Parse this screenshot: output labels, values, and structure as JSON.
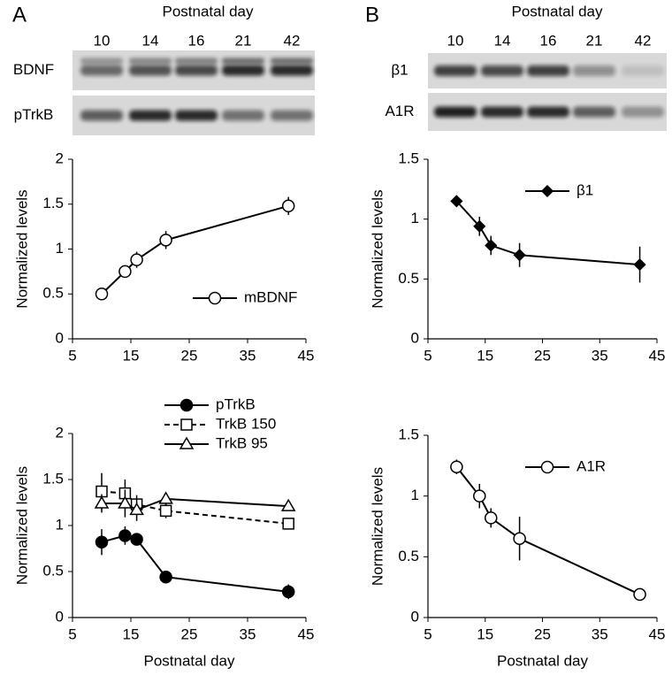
{
  "panels": [
    {
      "label": "A",
      "title": "Postnatal day",
      "lanes": [
        10,
        14,
        16,
        21,
        42
      ],
      "rows": [
        "BDNF",
        "pTrkB"
      ]
    },
    {
      "label": "B",
      "title": "Postnatal day",
      "lanes": [
        10,
        14,
        16,
        21,
        42
      ],
      "rows": [
        "β1",
        "A1R"
      ]
    }
  ],
  "chart_data": [
    {
      "type": "line",
      "y_label": "Normalized levels",
      "x": [
        10,
        14,
        16,
        21,
        42
      ],
      "xlim": [
        5,
        45
      ],
      "xticks": [
        5,
        15,
        25,
        35,
        45
      ],
      "ylim": [
        0,
        2
      ],
      "yticks": [
        0,
        0.5,
        1,
        1.5,
        2
      ],
      "legend": "center right",
      "series": [
        {
          "name": "mBDNF",
          "color": "#000000",
          "marker": "circle",
          "fill": "#ffffff",
          "dashed": false,
          "values": [
            0.5,
            0.75,
            0.88,
            1.1,
            1.48
          ],
          "errors": [
            0.03,
            0.06,
            0.09,
            0.1,
            0.1
          ]
        }
      ]
    },
    {
      "type": "line",
      "y_label": "Normalized levels",
      "x_label": "Postnatal day",
      "x": [
        10,
        14,
        16,
        21,
        42
      ],
      "xlim": [
        5,
        45
      ],
      "xticks": [
        5,
        15,
        25,
        35,
        45
      ],
      "ylim": [
        0,
        2
      ],
      "yticks": [
        0,
        0.5,
        1,
        1.5,
        2
      ],
      "legend": "top right",
      "series": [
        {
          "name": "pTrkB",
          "color": "#000000",
          "marker": "circle",
          "fill": "#000000",
          "dashed": false,
          "values": [
            0.82,
            0.89,
            0.85,
            0.44,
            0.28
          ],
          "errors": [
            0.14,
            0.1,
            0.03,
            0.05,
            0.08
          ]
        },
        {
          "name": "TrkB 150",
          "color": "#000000",
          "marker": "square",
          "fill": "#ffffff",
          "dashed": true,
          "values": [
            1.37,
            1.35,
            1.23,
            1.16,
            1.02
          ],
          "errors": [
            0.2,
            0.15,
            0.1,
            0.08,
            0.04
          ]
        },
        {
          "name": "TrkB 95",
          "color": "#000000",
          "marker": "triangle",
          "fill": "#ffffff",
          "dashed": false,
          "values": [
            1.24,
            1.24,
            1.17,
            1.29,
            1.21
          ],
          "errors": [
            0.1,
            0.15,
            0.12,
            0.07,
            0.02
          ]
        }
      ]
    },
    {
      "type": "line",
      "y_label": "Normalized levels",
      "x": [
        10,
        14,
        16,
        21,
        42
      ],
      "xlim": [
        5,
        45
      ],
      "xticks": [
        5,
        15,
        25,
        35,
        45
      ],
      "ylim": [
        0,
        1.5
      ],
      "yticks": [
        0,
        0.5,
        1,
        1.5
      ],
      "legend": "upper center",
      "series": [
        {
          "name": "β1",
          "color": "#000000",
          "marker": "diamond",
          "fill": "#000000",
          "dashed": false,
          "values": [
            1.15,
            0.94,
            0.78,
            0.7,
            0.62
          ],
          "errors": [
            0.03,
            0.08,
            0.08,
            0.1,
            0.15
          ]
        }
      ]
    },
    {
      "type": "line",
      "y_label": "Normalized levels",
      "x_label": "Postnatal day",
      "x": [
        10,
        14,
        16,
        21,
        42
      ],
      "xlim": [
        5,
        45
      ],
      "xticks": [
        5,
        15,
        25,
        35,
        45
      ],
      "ylim": [
        0,
        1.5
      ],
      "yticks": [
        0,
        0.5,
        1,
        1.5
      ],
      "legend": "upper center",
      "series": [
        {
          "name": "A1R",
          "color": "#000000",
          "marker": "circle",
          "fill": "#ffffff",
          "dashed": false,
          "values": [
            1.24,
            1.0,
            0.82,
            0.65,
            0.19
          ],
          "errors": [
            0.06,
            0.1,
            0.08,
            0.18,
            0.02
          ]
        }
      ]
    }
  ]
}
